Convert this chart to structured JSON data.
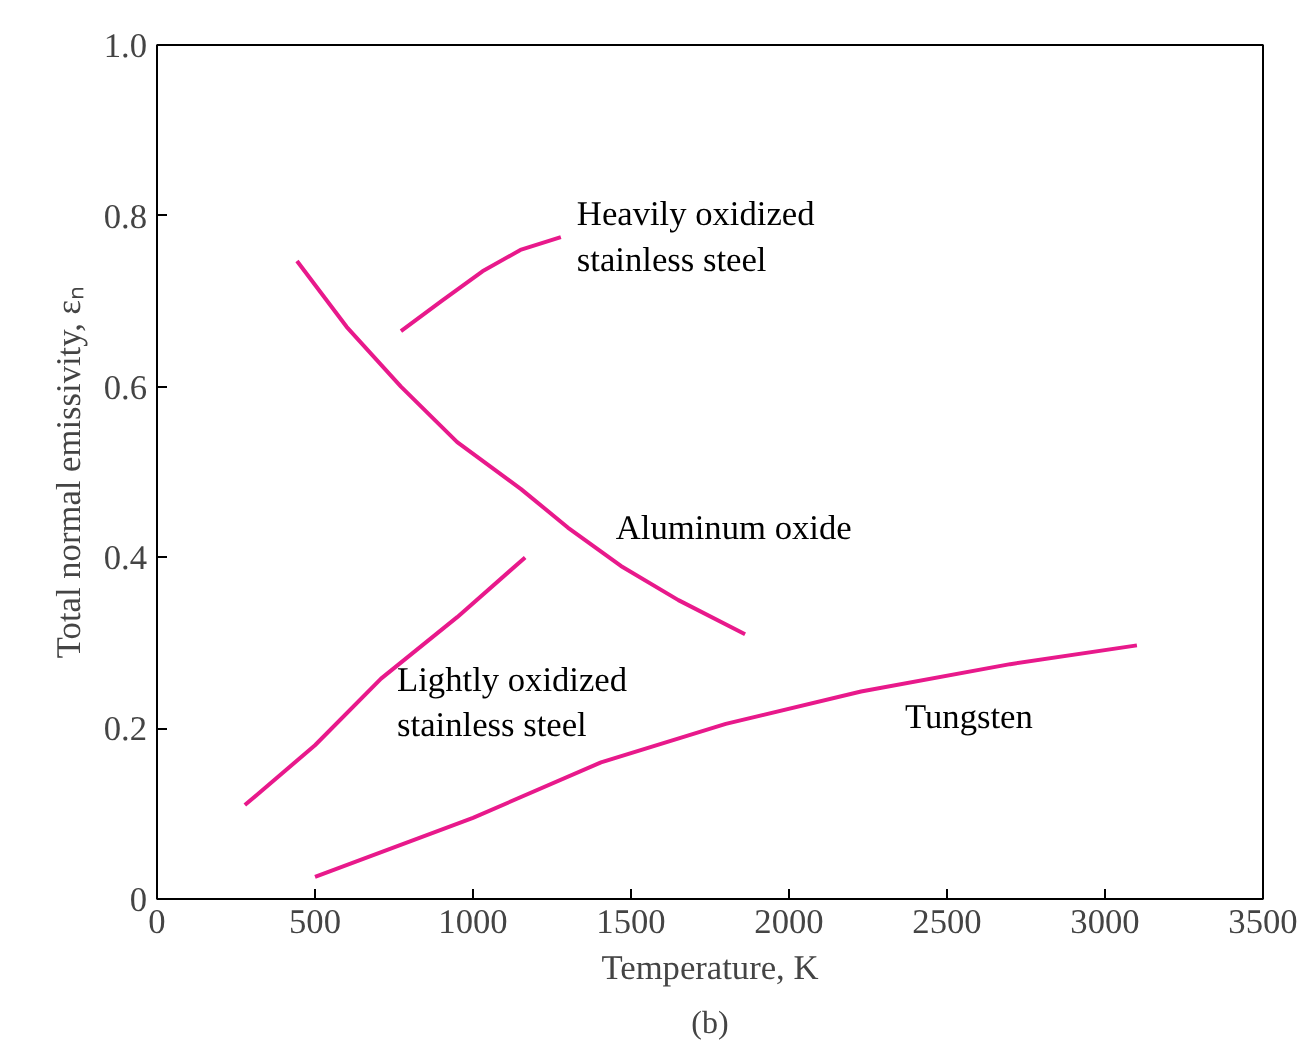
{
  "chart_data": {
    "type": "line",
    "xlabel": "Temperature, K",
    "ylabel": "Total normal emissivity, εₙ",
    "series": [
      {
        "name": "Heavily oxidized\nstainless steel",
        "color": "#e8198b",
        "x": [
          772,
          900,
          1030,
          1150,
          1278
        ],
        "values": [
          0.665,
          0.7,
          0.735,
          0.76,
          0.775
        ]
      },
      {
        "name": "Aluminum oxide",
        "color": "#e8198b",
        "x": [
          443,
          600,
          772,
          950,
          1152,
          1300,
          1468,
          1650,
          1861
        ],
        "values": [
          0.747,
          0.67,
          0.6,
          0.535,
          0.48,
          0.435,
          0.39,
          0.35,
          0.31
        ]
      },
      {
        "name": "Lightly oxidized\nstainless steel",
        "color": "#e8198b",
        "x": [
          278,
          500,
          709,
          950,
          1165
        ],
        "values": [
          0.11,
          0.18,
          0.258,
          0.33,
          0.4
        ]
      },
      {
        "name": "Tungsten",
        "color": "#e8198b",
        "x": [
          500,
          1000,
          1405,
          1800,
          2228,
          2700,
          3101
        ],
        "values": [
          0.026,
          0.095,
          0.16,
          0.205,
          0.243,
          0.275,
          0.297
        ]
      }
    ],
    "annotations": [
      "(b)"
    ],
    "xlim": [
      0,
      3500
    ],
    "ylim": [
      0,
      1.0
    ],
    "xticks": [
      0,
      500,
      1000,
      1500,
      2000,
      2500,
      3000,
      3500
    ],
    "yticks": [
      {
        "value": 0,
        "label": "0"
      },
      0.2,
      0.4,
      0.6,
      0.8,
      {
        "value": 1.0,
        "label": "1.0"
      }
    ],
    "grid": false,
    "legend": false,
    "marker": "none",
    "line_style": "solid"
  }
}
